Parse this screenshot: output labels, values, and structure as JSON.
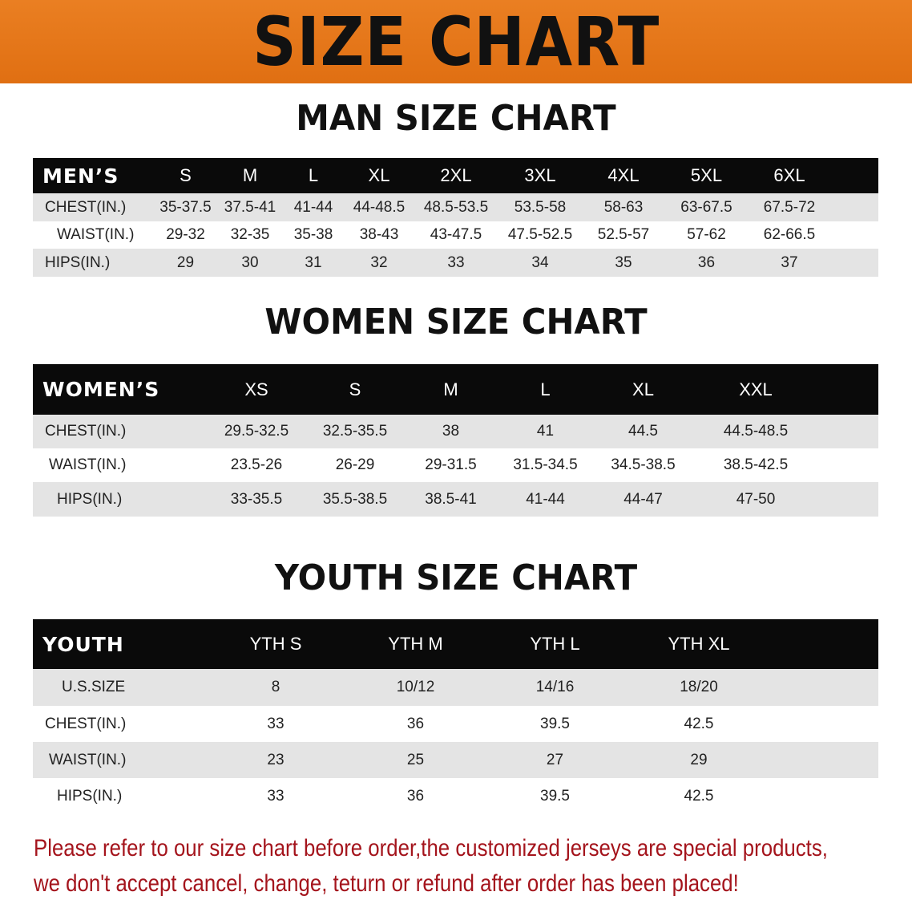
{
  "title": "SIZE CHART",
  "men": {
    "heading": "MAN SIZE CHART",
    "header": [
      "MEN’S",
      "S",
      "M",
      "L",
      "XL",
      "2XL",
      "3XL",
      "4XL",
      "5XL",
      "6XL"
    ],
    "rows": [
      [
        "CHEST(IN.)",
        "35-37.5",
        "37.5-41",
        "41-44",
        "44-48.5",
        "48.5-53.5",
        "53.5-58",
        "58-63",
        "63-67.5",
        "67.5-72"
      ],
      [
        "WAIST(IN.)",
        "29-32",
        "32-35",
        "35-38",
        "38-43",
        "43-47.5",
        "47.5-52.5",
        "52.5-57",
        "57-62",
        "62-66.5"
      ],
      [
        "HIPS(IN.)",
        "29",
        "30",
        "31",
        "32",
        "33",
        "34",
        "35",
        "36",
        "37"
      ]
    ]
  },
  "women": {
    "heading": "WOMEN SIZE CHART",
    "header": [
      "WOMEN’S",
      "XS",
      "S",
      "M",
      "L",
      "XL",
      "XXL"
    ],
    "rows": [
      [
        "CHEST(IN.)",
        "29.5-32.5",
        "32.5-35.5",
        "38",
        "41",
        "44.5",
        "44.5-48.5"
      ],
      [
        "WAIST(IN.)",
        "23.5-26",
        "26-29",
        "29-31.5",
        "31.5-34.5",
        "34.5-38.5",
        "38.5-42.5"
      ],
      [
        "HIPS(IN.)",
        "33-35.5",
        "35.5-38.5",
        "38.5-41",
        "41-44",
        "44-47",
        "47-50"
      ]
    ]
  },
  "youth": {
    "heading": "YOUTH SIZE CHART",
    "header": [
      "YOUTH",
      "YTH S",
      "YTH M",
      "YTH L",
      "YTH XL"
    ],
    "rows": [
      [
        "U.S.SIZE",
        "8",
        "10/12",
        "14/16",
        "18/20"
      ],
      [
        "CHEST(IN.)",
        "33",
        "36",
        "39.5",
        "42.5"
      ],
      [
        "WAIST(IN.)",
        "23",
        "25",
        "27",
        "29"
      ],
      [
        "HIPS(IN.)",
        "33",
        "36",
        "39.5",
        "42.5"
      ]
    ]
  },
  "notice": [
    "Please refer to our size chart before order,the customized jerseys are special products,",
    "we don't accept cancel, change, teturn or refund after order has been placed!"
  ],
  "colors": {
    "banner": "#e8771a",
    "header_bg": "#0a0a0a",
    "stripe": "#e4e4e4",
    "notice": "#a4141c"
  }
}
